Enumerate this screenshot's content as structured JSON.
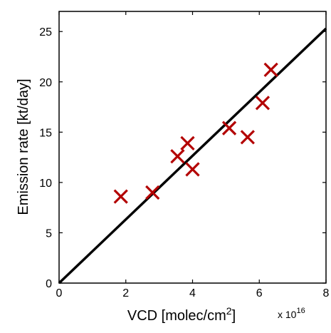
{
  "chart_data": {
    "type": "scatter",
    "title": "",
    "xlabel": "VCD [molec/cm",
    "xlabel_sup": "2",
    "xlabel_close": "]",
    "x_multiplier": "x 10",
    "x_multiplier_exp": "16",
    "ylabel": "Emission rate [kt/day]",
    "xlim": [
      0,
      8
    ],
    "ylim": [
      0,
      27
    ],
    "xticks": [
      0,
      2,
      4,
      6,
      8
    ],
    "yticks": [
      0,
      5,
      10,
      15,
      20,
      25
    ],
    "grid": false,
    "series": [
      {
        "marker": "x",
        "color": "#b30000",
        "points": [
          {
            "x": 1.85,
            "y": 8.6
          },
          {
            "x": 2.8,
            "y": 9.0
          },
          {
            "x": 3.55,
            "y": 12.6
          },
          {
            "x": 3.85,
            "y": 13.9
          },
          {
            "x": 4.0,
            "y": 11.3
          },
          {
            "x": 5.1,
            "y": 15.4
          },
          {
            "x": 5.65,
            "y": 14.5
          },
          {
            "x": 6.1,
            "y": 17.9
          },
          {
            "x": 6.35,
            "y": 21.2
          }
        ]
      }
    ],
    "fit_line": {
      "color": "#000000",
      "points": [
        {
          "x": 0,
          "y": 0
        },
        {
          "x": 8,
          "y": 25.3
        }
      ]
    }
  }
}
